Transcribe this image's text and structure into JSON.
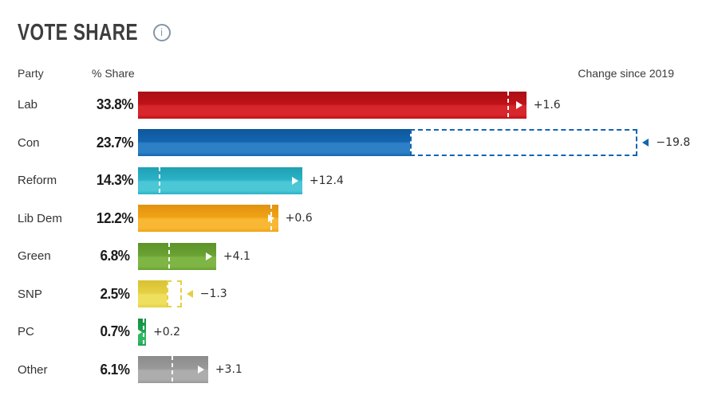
{
  "title": "VOTE SHARE",
  "info_icon_glyph": "i",
  "table_headers": {
    "party": "Party",
    "share": "% Share",
    "change": "Change since 2019"
  },
  "chart_data": {
    "type": "bar",
    "orientation": "horizontal",
    "title": "Vote Share",
    "categories": [
      "Lab",
      "Con",
      "Reform",
      "Lib Dem",
      "Green",
      "SNP",
      "PC",
      "Other"
    ],
    "series": [
      {
        "name": "% Share",
        "values": [
          33.8,
          23.7,
          14.3,
          12.2,
          6.8,
          2.5,
          0.7,
          6.1
        ]
      },
      {
        "name": "Change since 2019",
        "values": [
          1.6,
          -19.8,
          12.4,
          0.6,
          4.1,
          -1.3,
          0.2,
          3.1
        ]
      }
    ],
    "xlim": [
      0,
      46.5
    ],
    "legend_position": "none",
    "grid": false,
    "annotations": "Dashed marker shows 2019 level; dashed outline box shows lost share; arrow shows direction of change"
  },
  "rows": [
    {
      "party": "Lab",
      "share": 33.8,
      "share_label": "33.8%",
      "change": 1.6,
      "change_label": "+1.6",
      "color": "#bf1218",
      "color_light": "#d7262c",
      "color_dark": "#a90f15"
    },
    {
      "party": "Con",
      "share": 23.7,
      "share_label": "23.7%",
      "change": -19.8,
      "change_label": "−19.8",
      "color": "#1365af",
      "color_light": "#2e80c6",
      "color_dark": "#0e579b"
    },
    {
      "party": "Reform",
      "share": 14.3,
      "share_label": "14.3%",
      "change": 12.4,
      "change_label": "+12.4",
      "color": "#2ab2c6",
      "color_light": "#4cc7d6",
      "color_dark": "#219fb4"
    },
    {
      "party": "Lib Dem",
      "share": 12.2,
      "share_label": "12.2%",
      "change": 0.6,
      "change_label": "+0.6",
      "color": "#f0a216",
      "color_light": "#f8b834",
      "color_dark": "#e09310"
    },
    {
      "party": "Green",
      "share": 6.8,
      "share_label": "6.8%",
      "change": 4.1,
      "change_label": "+4.1",
      "color": "#6aa233",
      "color_light": "#7fb544",
      "color_dark": "#5d9229"
    },
    {
      "party": "SNP",
      "share": 2.5,
      "share_label": "2.5%",
      "change": -1.3,
      "change_label": "−1.3",
      "color": "#e5d044",
      "color_light": "#efdf5e",
      "color_dark": "#d9c232"
    },
    {
      "party": "PC",
      "share": 0.7,
      "share_label": "0.7%",
      "change": 0.2,
      "change_label": "+0.2",
      "color": "#1ba24e",
      "color_light": "#2fb862",
      "color_dark": "#149044"
    },
    {
      "party": "Other",
      "share": 6.1,
      "share_label": "6.1%",
      "change": 3.1,
      "change_label": "+3.1",
      "color": "#999999",
      "color_light": "#adadad",
      "color_dark": "#8c8c8c"
    }
  ]
}
